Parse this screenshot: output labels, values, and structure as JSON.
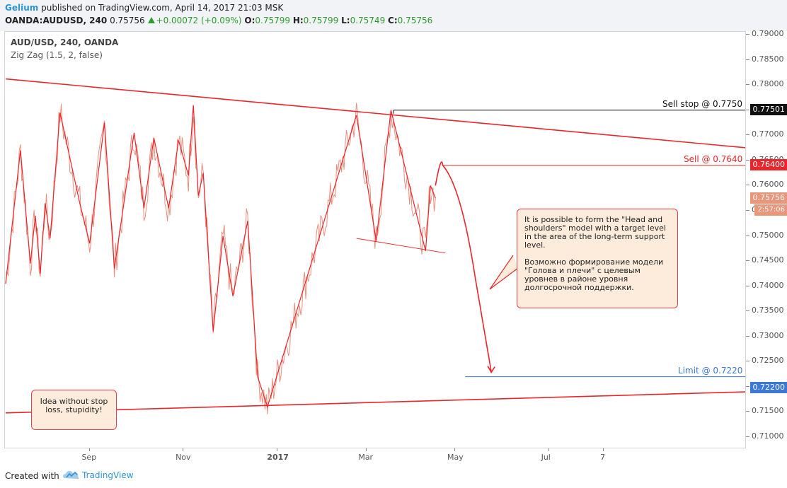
{
  "header": {
    "author": "Gelium",
    "published": "published on TradingView.com, April 14, 2017 21:03 MSK",
    "symbol": "OANDA:AUDUSD, 240",
    "last": "0.75756",
    "change": "+0.00072 (+0.09%)",
    "o_label": "O:",
    "o_value": "0.75799",
    "h_label": "H:",
    "h_value": "0.75799",
    "l_label": "L:",
    "l_value": "0.75749",
    "c_label": "C:",
    "c_value": "0.75756"
  },
  "legend": {
    "title": "AUD/USD, 240, OANDA",
    "indicator": "Zig Zag (1.5, 2, false)"
  },
  "annotations": {
    "sell_stop": "Sell stop @ 0.7750",
    "sell": "Sell @ 0.7640",
    "limit": "Limit @ 0.7220",
    "tag_sell_stop": "0.77501",
    "tag_sell": "0.76400",
    "tag_last": "0.75756",
    "tag_countdown": "2:57:06",
    "tag_limit": "0.72200",
    "note_en": "It is possible to form the \"Head and shoulders\" model with a target level in the area of the long-term support level.",
    "note_ru": "Возможно формирование модели \"Голова и плечи\" с целевым уровнев в районе уровня долгосрочной поддержки.",
    "note_left": "Idea without stop loss, stupidity!"
  },
  "footer": {
    "created_with": "Created with",
    "brand": "TradingView"
  },
  "colors": {
    "red": "#e8262c",
    "price": "#e8836f",
    "blue": "#3c78d8",
    "black": "#111111"
  },
  "chart_data": {
    "type": "line",
    "title": "AUD/USD, 240, OANDA",
    "ylim": [
      0.7065,
      0.7918
    ],
    "y_ticks": [
      "0.79000",
      "0.78500",
      "0.78000",
      "0.77500",
      "0.77000",
      "0.76500",
      "0.76000",
      "0.75500",
      "0.75000",
      "0.74500",
      "0.74000",
      "0.73500",
      "0.73000",
      "0.72500",
      "0.72000",
      "0.71500",
      "0.71000"
    ],
    "x_ticks": [
      "Sep",
      "Nov",
      "2017",
      "Mar",
      "May",
      "Jul",
      "7"
    ],
    "x_tick_index": [
      17,
      36,
      55,
      73,
      91,
      110,
      121
    ],
    "index_range": [
      0,
      150
    ],
    "zigzag": [
      {
        "i": 0,
        "p": 0.7405
      },
      {
        "i": 3,
        "p": 0.767
      },
      {
        "i": 5,
        "p": 0.7445
      },
      {
        "i": 6,
        "p": 0.754
      },
      {
        "i": 7,
        "p": 0.7425
      },
      {
        "i": 8,
        "p": 0.7565
      },
      {
        "i": 9,
        "p": 0.7495
      },
      {
        "i": 11,
        "p": 0.7745
      },
      {
        "i": 15,
        "p": 0.7565
      },
      {
        "i": 17,
        "p": 0.7485
      },
      {
        "i": 20,
        "p": 0.7725
      },
      {
        "i": 22,
        "p": 0.7435
      },
      {
        "i": 26,
        "p": 0.7705
      },
      {
        "i": 28,
        "p": 0.7555
      },
      {
        "i": 30,
        "p": 0.7695
      },
      {
        "i": 33,
        "p": 0.7555
      },
      {
        "i": 35,
        "p": 0.769
      },
      {
        "i": 37,
        "p": 0.762
      },
      {
        "i": 38,
        "p": 0.776
      },
      {
        "i": 39,
        "p": 0.758
      },
      {
        "i": 40,
        "p": 0.7625
      },
      {
        "i": 42,
        "p": 0.731
      },
      {
        "i": 44,
        "p": 0.75
      },
      {
        "i": 46,
        "p": 0.738
      },
      {
        "i": 49,
        "p": 0.753
      },
      {
        "i": 51,
        "p": 0.722
      },
      {
        "i": 53,
        "p": 0.716
      },
      {
        "i": 71,
        "p": 0.774
      },
      {
        "i": 75,
        "p": 0.749
      },
      {
        "i": 78,
        "p": 0.775
      },
      {
        "i": 85,
        "p": 0.747
      },
      {
        "i": 86,
        "p": 0.76
      },
      {
        "i": 87,
        "p": 0.7575
      }
    ],
    "series": [
      {
        "name": "AUD/USD",
        "type": "price"
      },
      {
        "name": "Zig Zag (1.5, 2, false)",
        "type": "zigzag"
      }
    ],
    "trendlines": [
      {
        "name": "resistance",
        "from": {
          "i": 0,
          "p": 0.7812
        },
        "to": {
          "i": 150,
          "p": 0.7675
        }
      },
      {
        "name": "support",
        "from": {
          "i": 0,
          "p": 0.7148
        },
        "to": {
          "i": 150,
          "p": 0.719
        }
      },
      {
        "name": "neckline",
        "from": {
          "i": 71,
          "p": 0.7495
        },
        "to": {
          "i": 89,
          "p": 0.7466
        }
      }
    ],
    "levels": [
      {
        "name": "sell_stop",
        "value": 0.775,
        "start_i": 78.5
      },
      {
        "name": "sell",
        "value": 0.764,
        "start_i": 88.5
      },
      {
        "name": "limit",
        "value": 0.722,
        "start_i": 93
      }
    ],
    "projection": [
      {
        "i": 87,
        "p": 0.76
      },
      {
        "i": 88.5,
        "p": 0.764
      },
      {
        "i": 91,
        "p": 0.759
      },
      {
        "i": 95,
        "p": 0.742
      },
      {
        "i": 98,
        "p": 0.723
      },
      {
        "i": 100,
        "p": 0.722
      }
    ]
  }
}
